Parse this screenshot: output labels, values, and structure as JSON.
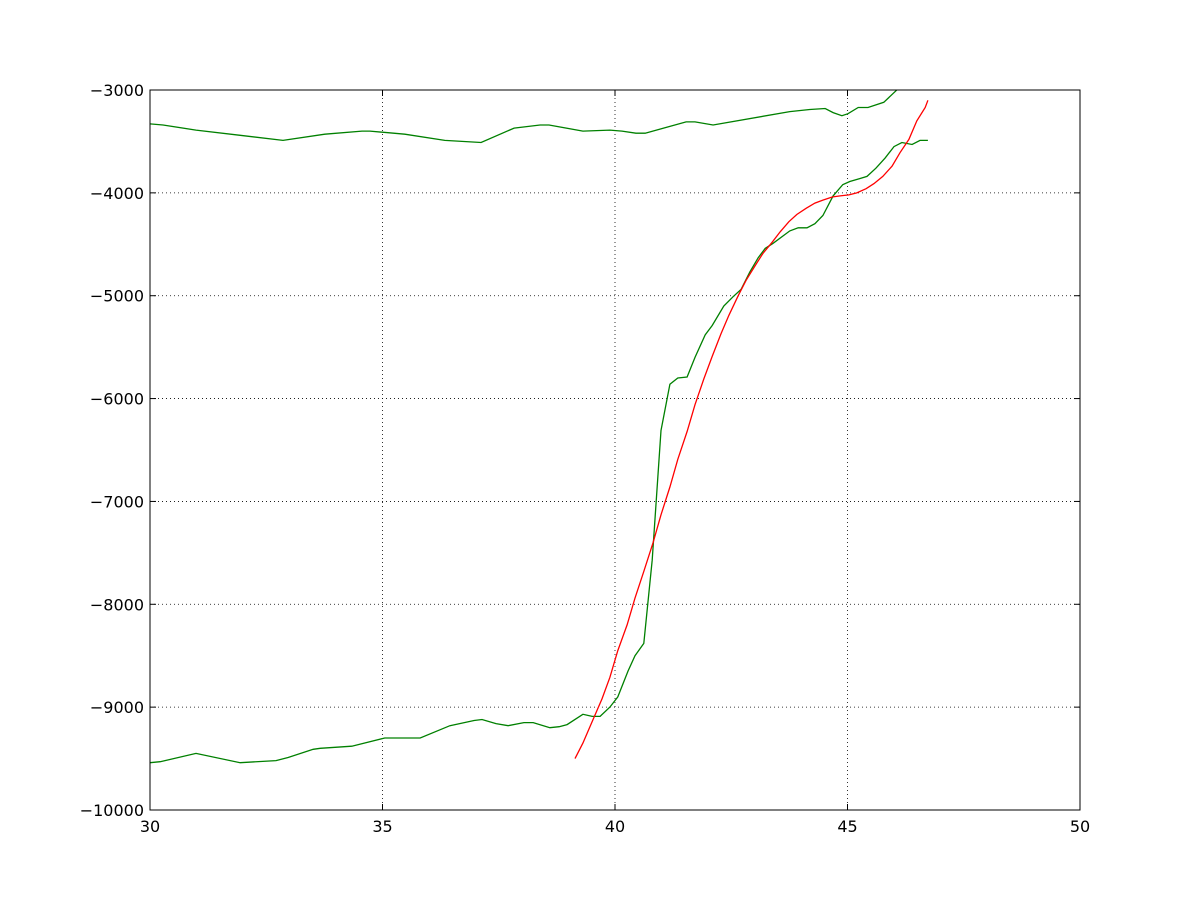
{
  "chart_data": {
    "type": "line",
    "title": "",
    "xlabel": "",
    "ylabel": "",
    "xlim": [
      30,
      50
    ],
    "ylim": [
      -10000,
      -3000
    ],
    "xticks": [
      "30",
      "35",
      "40",
      "45",
      "50"
    ],
    "yticks": [
      "−10000",
      "−9000",
      "−8000",
      "−7000",
      "−6000",
      "−5000",
      "−4000",
      "−3000"
    ],
    "xtick_values": [
      30,
      35,
      40,
      45,
      50
    ],
    "ytick_values": [
      -10000,
      -9000,
      -8000,
      -7000,
      -6000,
      -5000,
      -4000,
      -3000
    ],
    "grid": true,
    "grid_style": "dotted",
    "series": [
      {
        "color": "#008000",
        "x": [
          30,
          30.28,
          30.99,
          31.94,
          32.86,
          33.76,
          34.56,
          34.73,
          35.48,
          36.34,
          37.12,
          37.83,
          38.39,
          38.58,
          39.31,
          39.89,
          40.15,
          40.45,
          40.65,
          41.53,
          41.72,
          42.11,
          43.76,
          44.19,
          44.52,
          44.69,
          44.88,
          45.01,
          45.23,
          45.44,
          45.78,
          46.06,
          46.3
        ],
        "y": [
          -3330,
          -3340,
          -3390,
          -3440,
          -3490,
          -3430,
          -3400,
          -3400,
          -3430,
          -3490,
          -3510,
          -3370,
          -3340,
          -3340,
          -3400,
          -3390,
          -3400,
          -3420,
          -3420,
          -3310,
          -3310,
          -3340,
          -3210,
          -3190,
          -3180,
          -3220,
          -3250,
          -3230,
          -3170,
          -3170,
          -3120,
          -3000,
          -2850
        ]
      },
      {
        "color": "#008000",
        "x": [
          30,
          30.22,
          30.99,
          31.94,
          32.71,
          32.97,
          33.51,
          33.66,
          34.34,
          35.05,
          35.81,
          36.45,
          36.97,
          37.14,
          37.44,
          37.7,
          38.04,
          38.24,
          38.6,
          38.8,
          38.97,
          39.31,
          39.51,
          39.68,
          39.89,
          40.06,
          40.28,
          40.43,
          40.62,
          40.8,
          40.99,
          41.18,
          41.35,
          41.55,
          41.72,
          41.94,
          42.09,
          42.34,
          42.54,
          42.71,
          42.9,
          43.08,
          43.23,
          43.4,
          43.76,
          43.94,
          44.13,
          44.3,
          44.47,
          44.69,
          44.9,
          45.05,
          45.27,
          45.42,
          45.61,
          45.81,
          46.0,
          46.17,
          46.39,
          46.56,
          46.73
        ],
        "y": [
          -9540,
          -9530,
          -9450,
          -9540,
          -9520,
          -9490,
          -9410,
          -9400,
          -9380,
          -9300,
          -9300,
          -9180,
          -9130,
          -9120,
          -9160,
          -9180,
          -9150,
          -9150,
          -9200,
          -9190,
          -9170,
          -9070,
          -9090,
          -9090,
          -9000,
          -8900,
          -8650,
          -8500,
          -8380,
          -7570,
          -6310,
          -5860,
          -5800,
          -5790,
          -5600,
          -5380,
          -5290,
          -5100,
          -5010,
          -4940,
          -4770,
          -4630,
          -4540,
          -4490,
          -4370,
          -4340,
          -4340,
          -4300,
          -4220,
          -4030,
          -3920,
          -3890,
          -3860,
          -3840,
          -3760,
          -3660,
          -3550,
          -3510,
          -3530,
          -3490,
          -3490
        ]
      },
      {
        "color": "#ff0000",
        "x": [
          39.14,
          39.31,
          39.51,
          39.72,
          39.89,
          40.06,
          40.26,
          40.43,
          40.62,
          40.82,
          40.99,
          41.18,
          41.35,
          41.55,
          41.72,
          41.91,
          42.09,
          42.28,
          42.45,
          42.65,
          42.82,
          43.01,
          43.18,
          43.38,
          43.55,
          43.74,
          43.91,
          44.11,
          44.3,
          44.47,
          44.67,
          44.84,
          45.03,
          45.2,
          45.4,
          45.57,
          45.76,
          45.96,
          46.13,
          46.32,
          46.49,
          46.67,
          46.73
        ],
        "y": [
          -9500,
          -9350,
          -9140,
          -8920,
          -8710,
          -8450,
          -8200,
          -7940,
          -7680,
          -7400,
          -7130,
          -6860,
          -6590,
          -6320,
          -6060,
          -5810,
          -5590,
          -5370,
          -5190,
          -5000,
          -4850,
          -4710,
          -4590,
          -4480,
          -4380,
          -4280,
          -4210,
          -4150,
          -4100,
          -4070,
          -4040,
          -4030,
          -4020,
          -4000,
          -3960,
          -3910,
          -3840,
          -3740,
          -3610,
          -3480,
          -3300,
          -3170,
          -3100
        ]
      }
    ]
  }
}
